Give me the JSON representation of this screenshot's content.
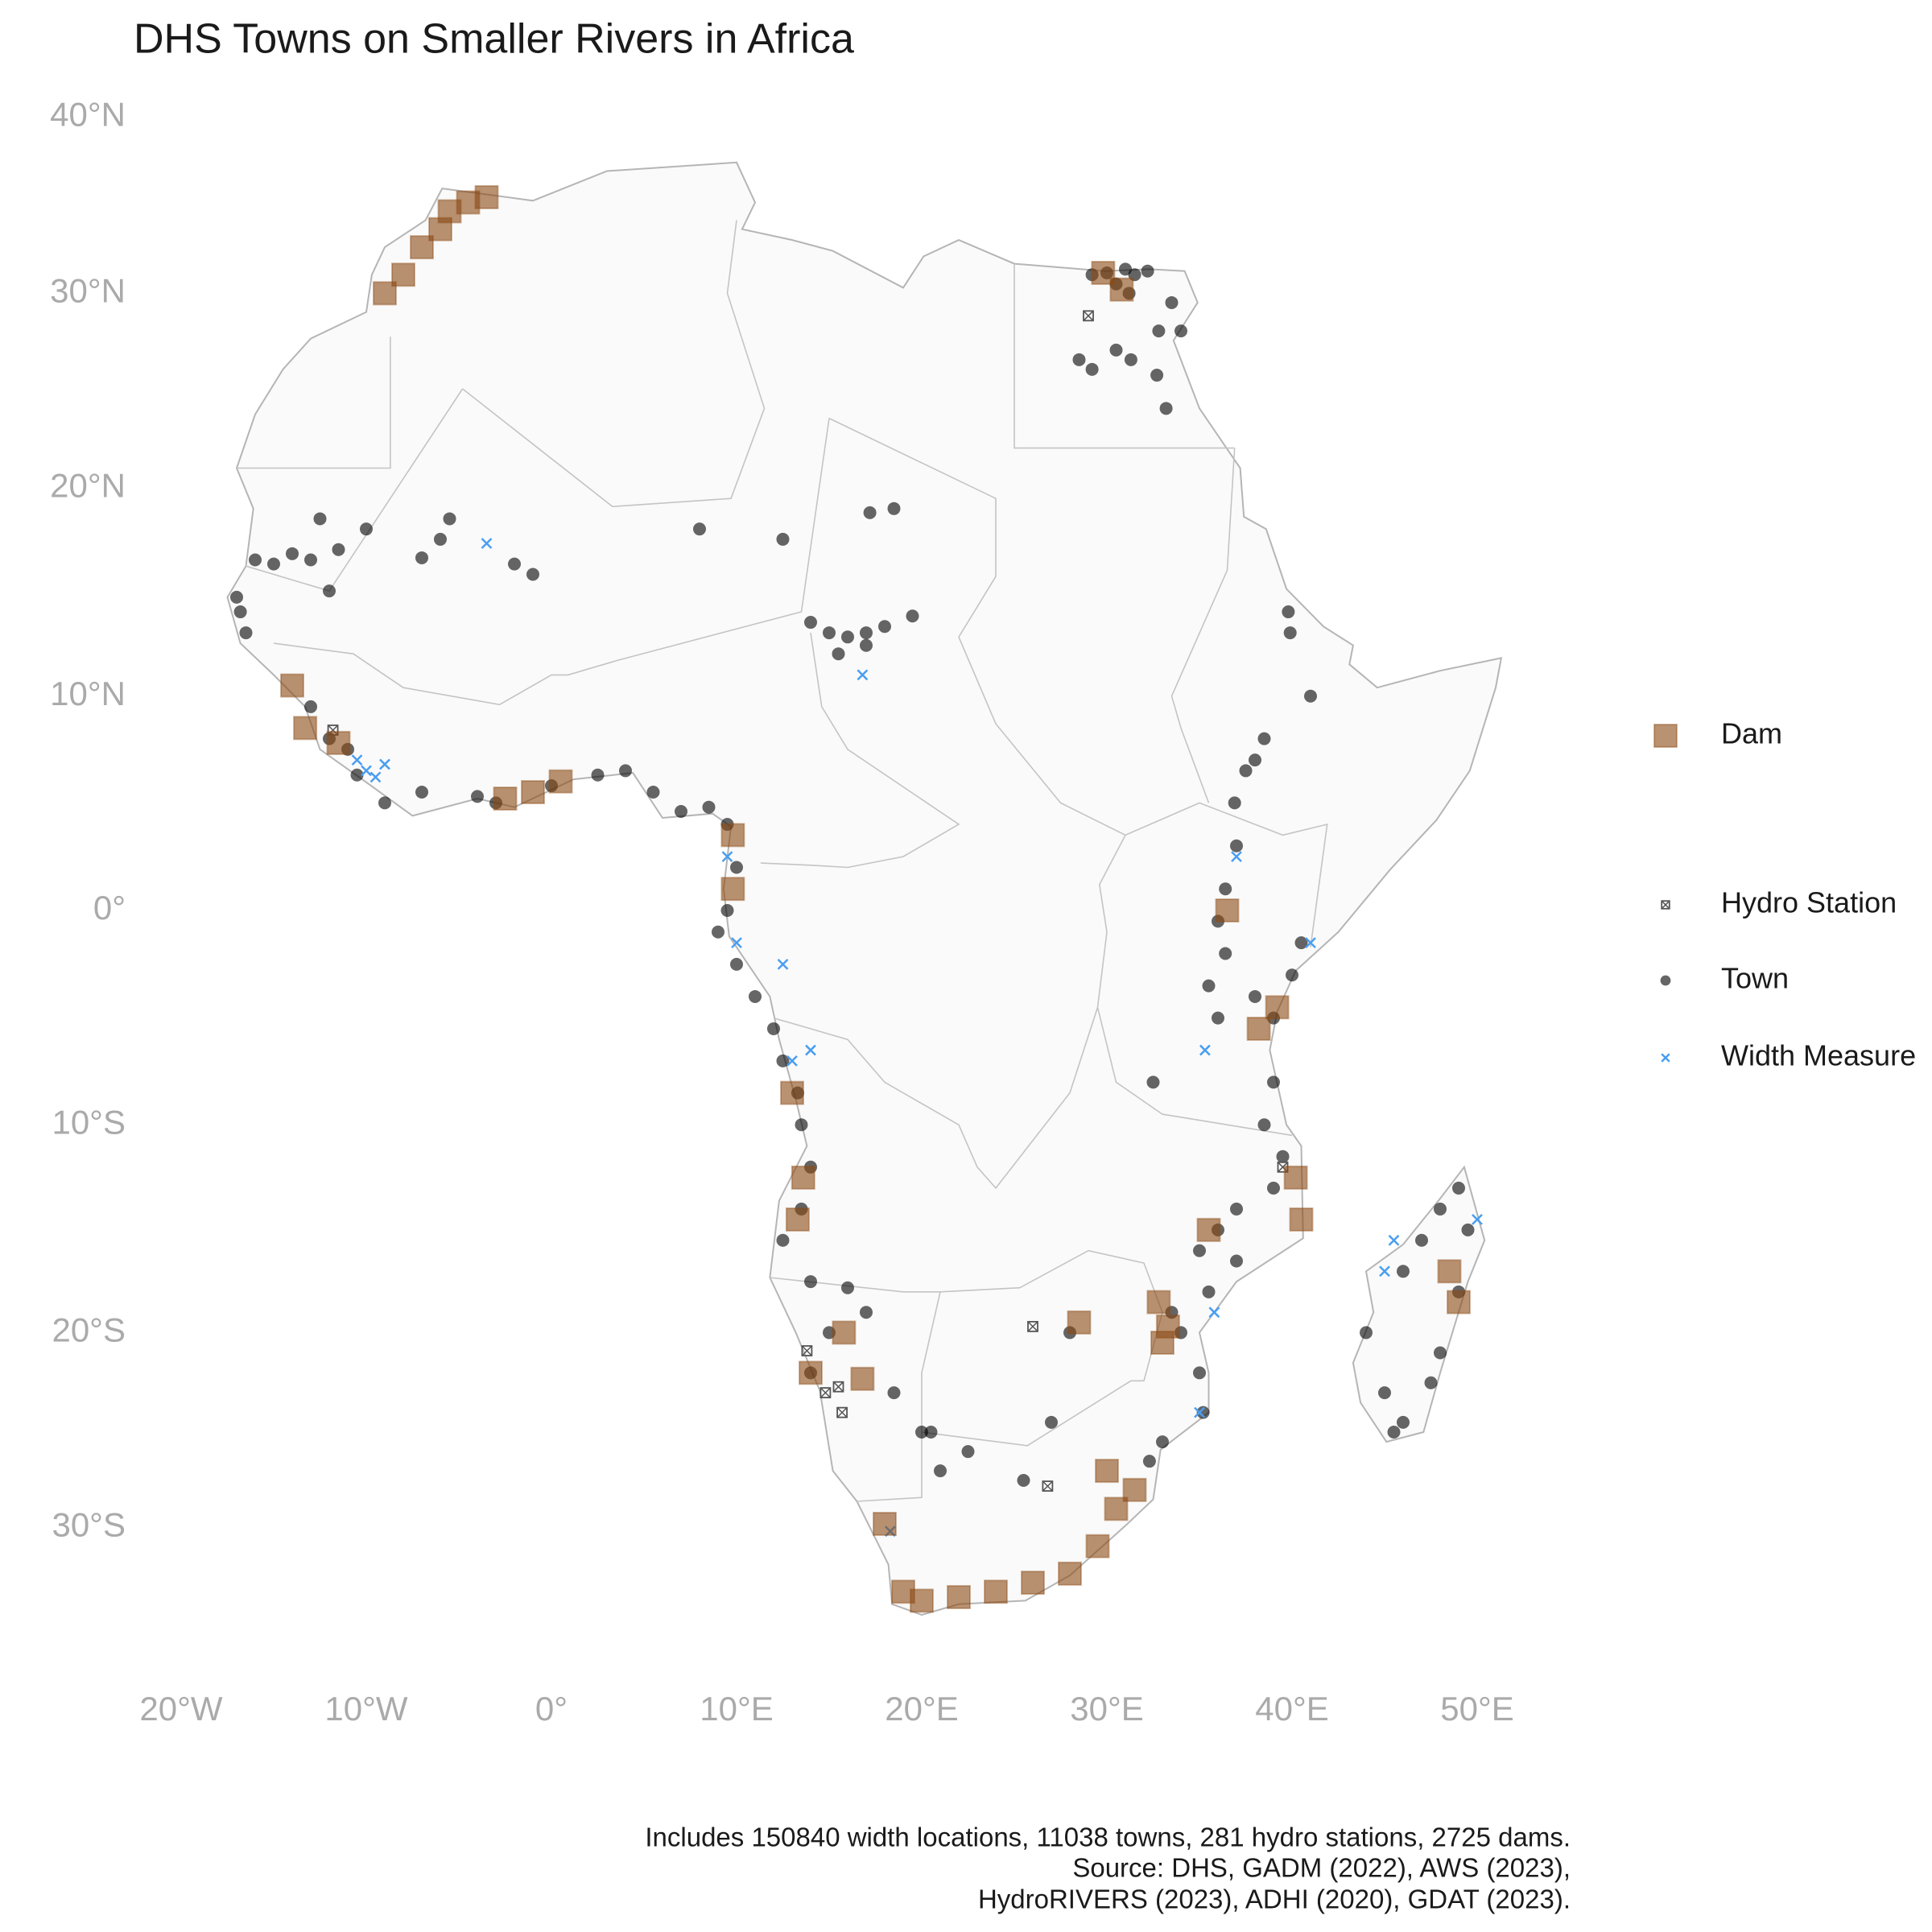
{
  "title": "DHS Towns on Smaller Rivers in Africa",
  "map": {
    "xlim": [
      -25,
      55
    ],
    "ylim": [
      -38,
      42
    ],
    "xticks": [
      {
        "value": -20,
        "label": "20°W"
      },
      {
        "value": -10,
        "label": "10°W"
      },
      {
        "value": 0,
        "label": "0°"
      },
      {
        "value": 10,
        "label": "10°E"
      },
      {
        "value": 20,
        "label": "20°E"
      },
      {
        "value": 30,
        "label": "30°E"
      },
      {
        "value": 40,
        "label": "40°E"
      },
      {
        "value": 50,
        "label": "50°E"
      }
    ],
    "yticks": [
      {
        "value": -30,
        "label": "30°S"
      },
      {
        "value": -20,
        "label": "20°S"
      },
      {
        "value": -10,
        "label": "10°S"
      },
      {
        "value": 0,
        "label": "0°"
      },
      {
        "value": 10,
        "label": "10°N"
      },
      {
        "value": 20,
        "label": "20°N"
      },
      {
        "value": 30,
        "label": "30°N"
      },
      {
        "value": 40,
        "label": "40°N"
      }
    ]
  },
  "layers": [
    {
      "name": "Dam",
      "shape": "square",
      "color": "#8b4a14",
      "lon": [
        -9,
        -8,
        -7,
        -6,
        -5.5,
        -4.5,
        -3.5,
        30.8,
        29.8,
        -14,
        -13.3,
        -11.5,
        -2.5,
        -1,
        0.5,
        9.8,
        9.8,
        13,
        13.6,
        13.3,
        14,
        16.8,
        15.8,
        18,
        19,
        20,
        22,
        24,
        26,
        28,
        29.5,
        30.5,
        31.5,
        30,
        32.8,
        33.3,
        33,
        28.5,
        35.5,
        38.2,
        39.2,
        40.2,
        40.5,
        36.5,
        48.5,
        49
      ],
      "lat": [
        30,
        31,
        32.5,
        33.5,
        34.5,
        35,
        35.3,
        30.2,
        31.1,
        10.5,
        8.5,
        7.8,
        5.2,
        5.5,
        6,
        3.5,
        1,
        -8.5,
        -12.5,
        -14.5,
        -22,
        -22.3,
        -20,
        -29.8,
        -33.5,
        -34,
        -33.8,
        -33.5,
        -33,
        -32.5,
        -31,
        -29,
        -28,
        -27,
        -18.5,
        -19.7,
        -20.5,
        -19.5,
        -15,
        -5.5,
        -4.5,
        -12.5,
        -14.5,
        0,
        -17,
        -18.5
      ]
    },
    {
      "name": "Hydro Station",
      "shape": "boxed-x",
      "color": "#555555",
      "lon": [
        -11.8,
        13.8,
        14.8,
        15.7,
        15.5,
        26,
        39.5,
        26.8,
        29
      ],
      "lat": [
        8.4,
        -20.9,
        -23,
        -24,
        -22.7,
        -19.7,
        -12,
        -27.8,
        28.8
      ]
    },
    {
      "name": "Town",
      "shape": "circle",
      "color": "#000000",
      "lon": [
        29.2,
        30,
        31,
        31.5,
        32.2,
        30.5,
        31.2,
        28.5,
        29.2,
        30.5,
        31.3,
        32.7,
        33.5,
        34,
        32.8,
        33.2,
        -16,
        -15,
        -13,
        -12,
        -17,
        -16.5,
        -16.8,
        -11.5,
        -10,
        -12.5,
        -14,
        -6,
        -7,
        -5.5,
        -1,
        -2,
        8,
        12.5,
        18.5,
        17.2,
        -13,
        -12,
        -11,
        -10.5,
        -9,
        -7,
        -4,
        -3,
        0,
        2.5,
        4,
        5.5,
        7,
        8.5,
        9.5,
        10,
        9.5,
        9,
        10,
        11,
        12,
        12.5,
        13.3,
        13.5,
        14,
        13.5,
        12.5,
        14,
        16,
        17,
        15,
        14,
        18.5,
        20,
        14,
        15,
        16,
        17,
        18,
        15.5,
        17,
        19.5,
        39.8,
        39.9,
        41,
        38.5,
        38,
        37.5,
        36.9,
        37,
        36.4,
        36,
        36.4,
        35.5,
        36,
        38,
        39,
        40,
        40.5,
        39,
        38.5,
        39.5,
        39,
        37,
        36,
        35,
        37,
        35.5,
        33.5,
        34,
        35,
        35.2,
        33,
        32.3,
        47,
        48,
        49,
        49.5,
        49,
        48,
        46,
        45,
        44,
        46,
        47.5,
        45.5,
        28,
        27,
        25.5,
        21,
        20.5,
        22.5,
        32.5
      ],
      "lat": [
        31,
        31.1,
        31.3,
        31,
        31.2,
        30.5,
        30,
        26.5,
        26,
        27,
        26.5,
        25.7,
        29.5,
        28,
        28,
        24,
        16.5,
        16.3,
        16.5,
        15,
        14.7,
        13,
        14,
        17,
        18,
        18.5,
        16.8,
        17.5,
        16.6,
        18.5,
        15.8,
        16.3,
        18,
        17.5,
        19,
        18.8,
        9.5,
        8,
        7.5,
        6.3,
        5,
        5.5,
        5.3,
        5,
        5.8,
        6.3,
        6.5,
        5.5,
        4.6,
        4.8,
        4,
        2,
        0,
        -1,
        -2.5,
        -4,
        -5.5,
        -7,
        -8.5,
        -10,
        -12,
        -14,
        -15.5,
        -17.5,
        -17.8,
        -19,
        -20,
        -22,
        -23,
        -25,
        13.5,
        13,
        12.8,
        13,
        13.3,
        12,
        12.4,
        13.8,
        14,
        13,
        10,
        8,
        7,
        6.5,
        5,
        3,
        1,
        -0.5,
        -2,
        -3.5,
        -5,
        -4,
        -5,
        -3,
        -1.5,
        -8,
        -10,
        -11.5,
        -13,
        -14,
        -15,
        -16,
        -16.5,
        -18,
        -19,
        -20,
        -22,
        -24,
        -25.5,
        -26.5,
        -15.5,
        -14,
        -13,
        -15,
        -18,
        -21,
        -24.5,
        -23,
        -20,
        -17,
        -22.5,
        -25,
        -20,
        -24.5,
        -27.5,
        -27,
        -25,
        -26,
        -8
      ]
    },
    {
      "name": "Width Measure",
      "shape": "x",
      "color": "#4a9ef0",
      "lon": [
        -10,
        -10.5,
        -9.5,
        -9,
        -3.5,
        16.8,
        9.5,
        10,
        12.5,
        13,
        14,
        37,
        35.3,
        35.8,
        35,
        18.3,
        45,
        50,
        45.5,
        41
      ],
      "lat": [
        6.5,
        7,
        6.2,
        6.8,
        17.3,
        11,
        2.5,
        -1.5,
        -2.5,
        -7,
        -6.5,
        2.5,
        -6.5,
        -19,
        -24,
        -30.2,
        -17,
        -14.5,
        -15.5,
        -1.5
      ]
    }
  ],
  "caption": [
    "Includes 150840 width locations, 11038 towns, 281 hydro stations, 2725 dams.",
    "Source: DHS, GADM (2022), AWS (2023),",
    "HydroRIVERS (2023), ADHI (2020), GDAT (2023)."
  ]
}
